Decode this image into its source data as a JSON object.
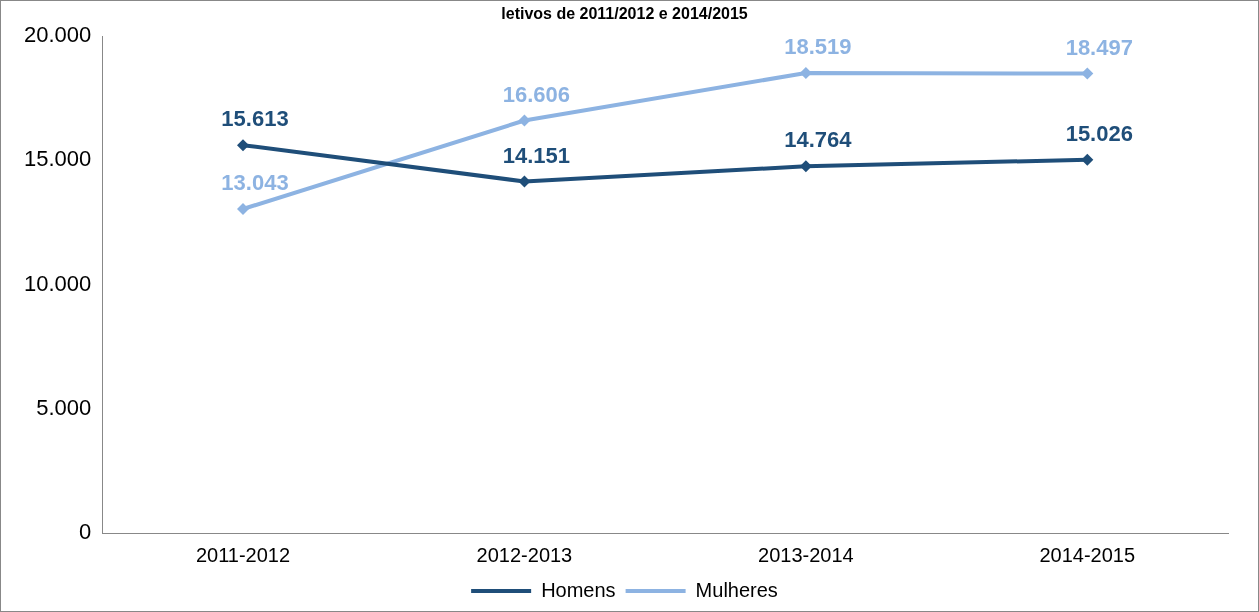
{
  "chart_data": {
    "type": "line",
    "title": "letivos de 2011/2012 e 2014/2015",
    "categories": [
      "2011-2012",
      "2012-2013",
      "2013-2014",
      "2014-2015"
    ],
    "series": [
      {
        "name": "Homens",
        "color": "#1f4e79",
        "values": [
          15613,
          14151,
          14764,
          15026
        ],
        "value_labels": [
          "15.613",
          "14.151",
          "14.764",
          "15.026"
        ]
      },
      {
        "name": "Mulheres",
        "color": "#8db3e2",
        "values": [
          13043,
          16606,
          18519,
          18497
        ],
        "value_labels": [
          "13.043",
          "16.606",
          "18.519",
          "18.497"
        ]
      }
    ],
    "ylim": [
      0,
      20000
    ],
    "yticks": [
      {
        "value": 0,
        "label": "0"
      },
      {
        "value": 5000,
        "label": "5.000"
      },
      {
        "value": 10000,
        "label": "10.000"
      },
      {
        "value": 15000,
        "label": "15.000"
      },
      {
        "value": 20000,
        "label": "20.000"
      }
    ],
    "grid": false,
    "legend": "bottom",
    "marker": "diamond",
    "line_style": "solid"
  }
}
